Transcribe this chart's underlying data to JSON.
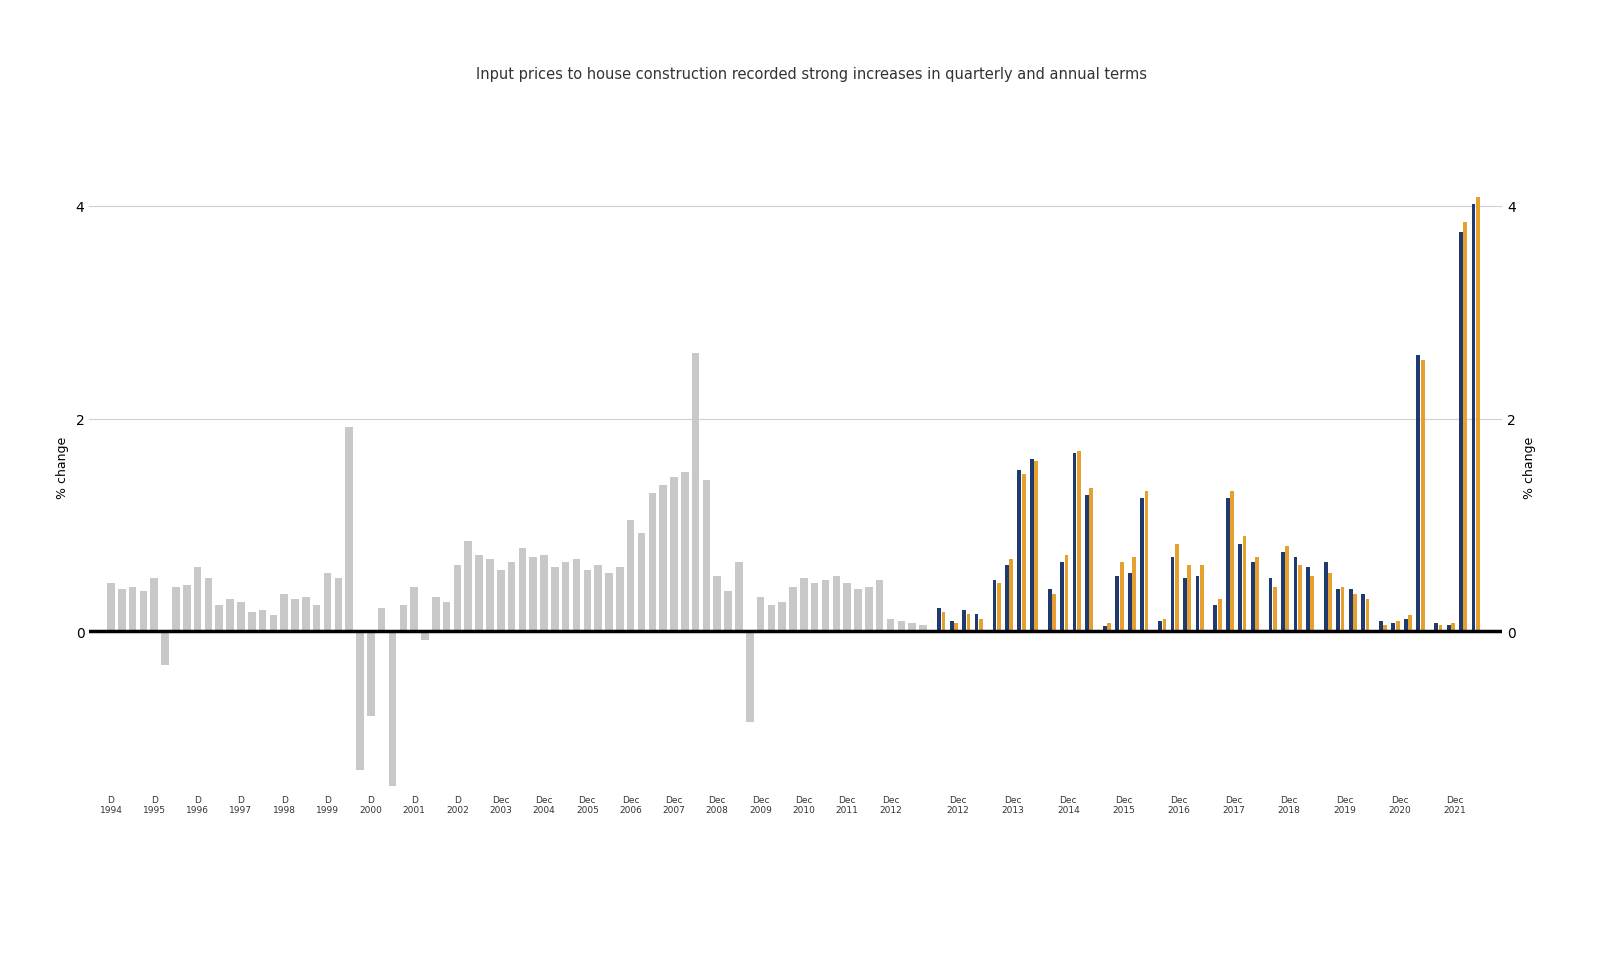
{
  "title": "Input prices to house construction recorded strong increases in quarterly and annual terms",
  "title_color": "#333333",
  "ylabel": "% change",
  "ylim": [
    -1.5,
    4.6
  ],
  "yticks": [
    0,
    2,
    4
  ],
  "gray_color": "#c8c8c8",
  "blue_color": "#1f3a6e",
  "orange_color": "#e6a030",
  "gray_values": [
    0.45,
    0.4,
    0.42,
    0.38,
    0.5,
    -0.32,
    0.42,
    0.44,
    0.6,
    0.5,
    0.25,
    0.3,
    0.28,
    0.18,
    0.2,
    0.15,
    0.35,
    0.3,
    0.32,
    0.25,
    0.55,
    0.5,
    1.92,
    -1.3,
    -0.8,
    0.22,
    -1.45,
    0.25,
    0.42,
    -0.08,
    0.32,
    0.28,
    0.62,
    0.85,
    0.72,
    0.68,
    0.58,
    0.65,
    0.78,
    0.7,
    0.72,
    0.6,
    0.65,
    0.68,
    0.58,
    0.62,
    0.55,
    0.6,
    1.05,
    0.92,
    1.3,
    1.38,
    1.45,
    1.5,
    2.62,
    1.42,
    0.52,
    0.38,
    0.65,
    -0.85,
    0.32,
    0.25,
    0.28,
    0.42,
    0.5,
    0.45,
    0.48,
    0.52,
    0.45,
    0.4,
    0.42,
    0.48,
    0.12,
    0.1,
    0.08,
    0.06
  ],
  "gray_year_labels": [
    "D\n1994",
    "D\n1995",
    "D\n1996",
    "D\n1997",
    "D\n1998",
    "D\n1999",
    "D\n2000",
    "D\n2001",
    "D\n2002",
    "Dec\n2003",
    "Dec\n2004",
    "Dec\n2005",
    "Dec\n2006",
    "Dec\n2007",
    "Dec\n2008",
    "Dec\n2009",
    "Dec\n2010",
    "Dec\n2011",
    "Dec\n2012"
  ],
  "colored_year_labels": [
    "Dec 2013",
    "Dec 2014",
    "Dec 2015",
    "Dec 2016",
    "Dec 2017",
    "Dec 2018",
    "Dec 2019",
    "Dec 2020",
    "Dec 2021"
  ],
  "blue_values": [
    [
      0.48,
      0.62,
      1.52,
      1.62
    ],
    [
      0.4,
      0.65,
      1.68,
      1.28
    ],
    [
      0.05,
      0.52,
      0.55,
      1.25
    ],
    [
      0.1,
      0.7,
      0.5,
      0.52
    ],
    [
      0.25,
      1.25,
      0.82,
      0.65
    ],
    [
      0.5,
      0.75,
      0.7,
      0.6
    ],
    [
      0.65,
      0.4,
      0.4,
      0.35
    ],
    [
      0.1,
      0.08,
      0.12,
      2.6
    ],
    [
      0.08,
      0.06,
      3.75,
      4.02
    ]
  ],
  "orange_values": [
    [
      0.45,
      0.68,
      1.48,
      1.6
    ],
    [
      0.35,
      0.72,
      1.7,
      1.35
    ],
    [
      0.08,
      0.65,
      0.7,
      1.32
    ],
    [
      0.12,
      0.82,
      0.62,
      0.62
    ],
    [
      0.3,
      1.32,
      0.9,
      0.7
    ],
    [
      0.42,
      0.8,
      0.62,
      0.52
    ],
    [
      0.55,
      0.42,
      0.35,
      0.3
    ],
    [
      0.06,
      0.1,
      0.15,
      2.55
    ],
    [
      0.06,
      0.08,
      3.85,
      4.08
    ]
  ],
  "dec2012_blue": [
    0.22,
    0.1,
    0.2,
    0.16
  ],
  "dec2012_orange": [
    0.18,
    0.08,
    0.16,
    0.12
  ]
}
